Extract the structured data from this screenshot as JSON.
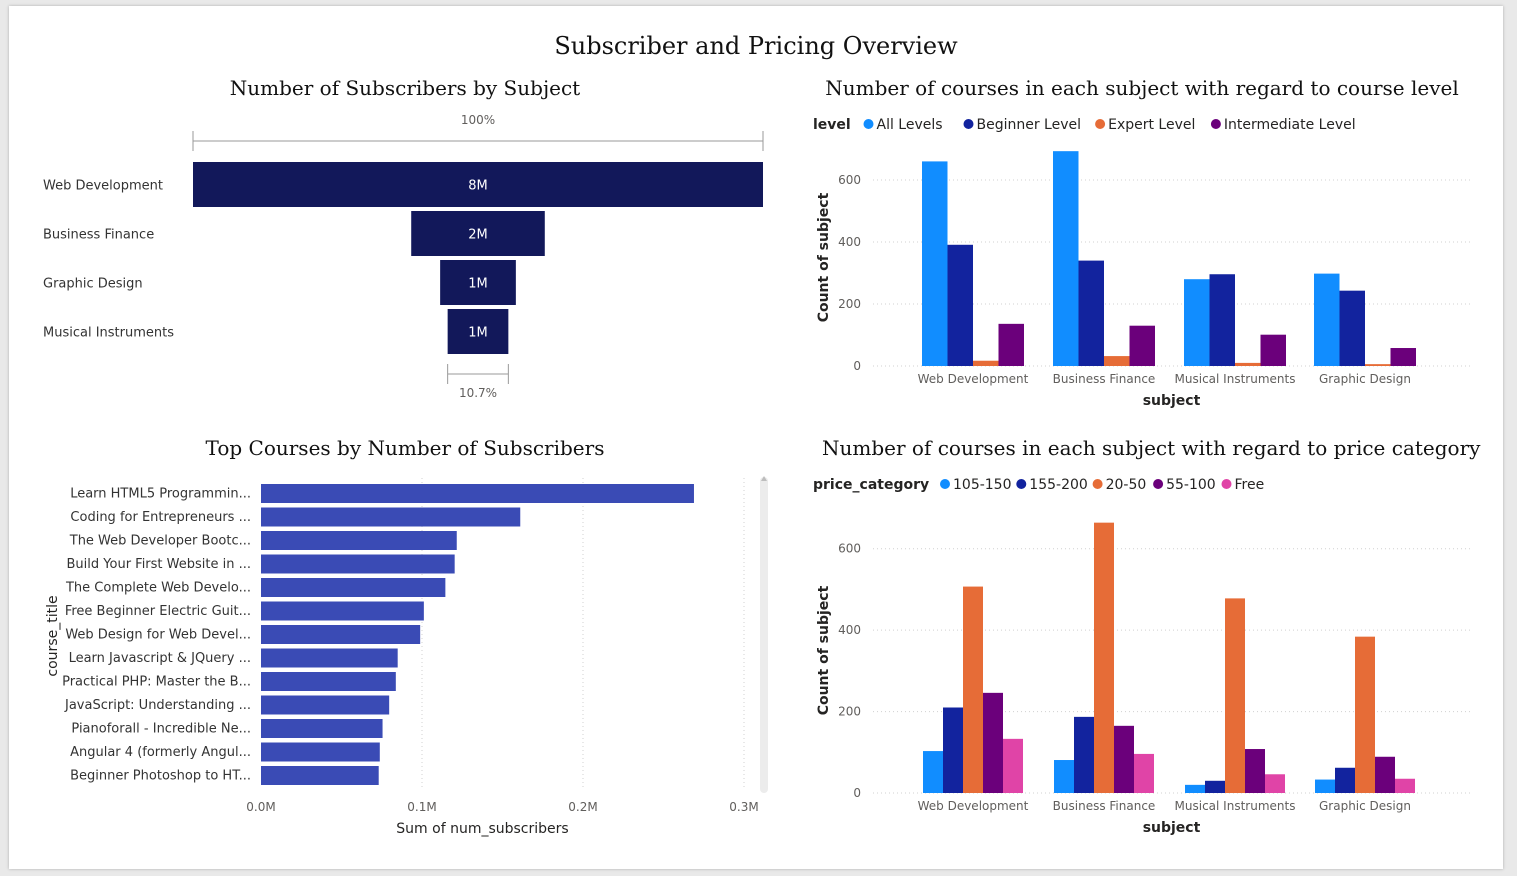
{
  "page": {
    "title": "Subscriber and Pricing Overview"
  },
  "chart_data": [
    {
      "type": "funnel",
      "title": "Number of Subscribers by Subject",
      "categories": [
        "Web Development",
        "Business Finance",
        "Graphic Design",
        "Musical Instruments"
      ],
      "values": [
        7980000,
        1870000,
        1060000,
        850000
      ],
      "value_labels": [
        "8M",
        "2M",
        "1M",
        "1M"
      ],
      "top_pct_label": "100%",
      "bottom_pct_label": "10.7%",
      "bar_color": "#12185a"
    },
    {
      "type": "bar",
      "orientation": "horizontal",
      "title": "Top Courses by Number of Subscribers",
      "xlabel": "Sum of num_subscribers",
      "ylabel": "course_title",
      "xlim": [
        0,
        300000
      ],
      "xticks": [
        "0.0M",
        "0.1M",
        "0.2M",
        "0.3M"
      ],
      "categories": [
        "Learn HTML5 Programmin...",
        "Coding for Entrepreneurs ...",
        "The Web Developer Bootc...",
        "Build Your First Website in ...",
        "The Complete Web Develo...",
        "Free Beginner Electric Guit...",
        "Web Design for Web Devel...",
        "Learn Javascript & JQuery ...",
        "Practical PHP: Master the B...",
        "JavaScript: Understanding ...",
        "Pianoforall - Incredible Ne...",
        "Angular 4 (formerly Angul...",
        "Beginner Photoshop to HT..."
      ],
      "values": [
        268923,
        161029,
        121584,
        120291,
        114512,
        101154,
        98867,
        84897,
        83737,
        79612,
        75499,
        73783,
        73110
      ],
      "bar_color": "#3a4bb5"
    },
    {
      "type": "bar",
      "title": "Number of courses in each subject with regard to course level",
      "xlabel": "subject",
      "ylabel": "Count of subject",
      "ylim": [
        0,
        700
      ],
      "yticks": [
        0,
        200,
        400,
        600
      ],
      "legend_title": "level",
      "legend_position": "top-left",
      "categories": [
        "Web Development",
        "Business Finance",
        "Musical Instruments",
        "Graphic Design"
      ],
      "series": [
        {
          "name": "All Levels",
          "color": "#118dff",
          "values": [
            660,
            693,
            280,
            298
          ]
        },
        {
          "name": "Beginner Level",
          "color": "#12239e",
          "values": [
            391,
            340,
            296,
            243
          ]
        },
        {
          "name": "Expert Level",
          "color": "#e66c37",
          "values": [
            17,
            32,
            10,
            6
          ]
        },
        {
          "name": "Intermediate Level",
          "color": "#6b007b",
          "values": [
            136,
            130,
            101,
            58
          ]
        }
      ]
    },
    {
      "type": "bar",
      "title": "Number of courses in each subject with regard to price category",
      "xlabel": "subject",
      "ylabel": "Count of subject",
      "ylim": [
        0,
        700
      ],
      "yticks": [
        0,
        200,
        400,
        600
      ],
      "legend_title": "price_category",
      "legend_position": "top-left",
      "categories": [
        "Web Development",
        "Business Finance",
        "Musical Instruments",
        "Graphic Design"
      ],
      "series": [
        {
          "name": "105-150",
          "color": "#118dff",
          "values": [
            103,
            81,
            20,
            33
          ]
        },
        {
          "name": "155-200",
          "color": "#12239e",
          "values": [
            210,
            187,
            30,
            62
          ]
        },
        {
          "name": "20-50",
          "color": "#e66c37",
          "values": [
            507,
            664,
            478,
            384
          ]
        },
        {
          "name": "55-100",
          "color": "#6b007b",
          "values": [
            246,
            165,
            108,
            89
          ]
        },
        {
          "name": "Free",
          "color": "#e044a7",
          "values": [
            133,
            96,
            46,
            35
          ]
        }
      ]
    }
  ]
}
